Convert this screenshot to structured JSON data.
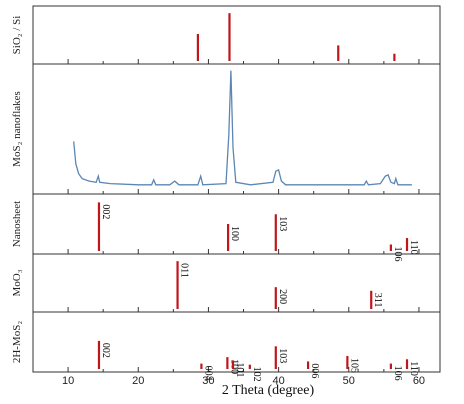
{
  "chart_data": {
    "type": "stacked_xrd_patterns",
    "xlabel": "2 Theta (degree)",
    "xlim": [
      5,
      63
    ],
    "x_ticks": [
      10,
      20,
      30,
      40,
      50,
      60
    ],
    "colors": {
      "sticks": "#c0161b",
      "curve": "#5b86b5",
      "frame": "#333333"
    },
    "panels": [
      {
        "id": "sio2",
        "label": "SiO₂ / Si",
        "kind": "sticks",
        "peaks": [
          {
            "x": 28.5,
            "h": 0.52,
            "label": ""
          },
          {
            "x": 33.0,
            "h": 0.92,
            "label": ""
          },
          {
            "x": 48.5,
            "h": 0.3,
            "label": ""
          },
          {
            "x": 56.5,
            "h": 0.14,
            "label": ""
          }
        ]
      },
      {
        "id": "mos2-nanoflakes",
        "label": "MoS₂ nanoflakes",
        "kind": "curve",
        "points": [
          [
            10.8,
            0.4
          ],
          [
            11.1,
            0.22
          ],
          [
            11.5,
            0.14
          ],
          [
            12.0,
            0.1
          ],
          [
            13.0,
            0.08
          ],
          [
            14.0,
            0.07
          ],
          [
            14.3,
            0.12
          ],
          [
            14.5,
            0.07
          ],
          [
            16.0,
            0.06
          ],
          [
            18.0,
            0.055
          ],
          [
            20.0,
            0.05
          ],
          [
            21.9,
            0.05
          ],
          [
            22.2,
            0.09
          ],
          [
            22.5,
            0.05
          ],
          [
            24.5,
            0.05
          ],
          [
            25.2,
            0.08
          ],
          [
            25.8,
            0.05
          ],
          [
            28.5,
            0.05
          ],
          [
            28.9,
            0.12
          ],
          [
            29.2,
            0.05
          ],
          [
            32.5,
            0.06
          ],
          [
            32.9,
            0.45
          ],
          [
            33.2,
            0.97
          ],
          [
            33.5,
            0.35
          ],
          [
            33.9,
            0.07
          ],
          [
            36.0,
            0.05
          ],
          [
            39.2,
            0.07
          ],
          [
            39.6,
            0.16
          ],
          [
            40.0,
            0.17
          ],
          [
            40.4,
            0.08
          ],
          [
            41.0,
            0.05
          ],
          [
            45.0,
            0.05
          ],
          [
            50.0,
            0.05
          ],
          [
            52.2,
            0.05
          ],
          [
            52.5,
            0.08
          ],
          [
            52.8,
            0.05
          ],
          [
            54.5,
            0.06
          ],
          [
            55.2,
            0.12
          ],
          [
            55.6,
            0.13
          ],
          [
            56.0,
            0.07
          ],
          [
            56.5,
            0.06
          ],
          [
            56.7,
            0.1
          ],
          [
            57.0,
            0.05
          ],
          [
            59.0,
            0.05
          ]
        ]
      },
      {
        "id": "mos2-nanosheet",
        "label": "Nanosheet",
        "kind": "sticks",
        "peaks": [
          {
            "x": 14.4,
            "h": 0.9,
            "label": "002"
          },
          {
            "x": 32.8,
            "h": 0.5,
            "label": "100"
          },
          {
            "x": 39.6,
            "h": 0.68,
            "label": "103"
          },
          {
            "x": 56.0,
            "h": 0.12,
            "label": "106"
          },
          {
            "x": 58.3,
            "h": 0.24,
            "label": "110"
          }
        ]
      },
      {
        "id": "moo3",
        "label": "MoO₃",
        "kind": "sticks",
        "peaks": [
          {
            "x": 25.6,
            "h": 0.92,
            "label": "011"
          },
          {
            "x": 39.6,
            "h": 0.42,
            "label": "200"
          },
          {
            "x": 53.2,
            "h": 0.35,
            "label": "311"
          }
        ]
      },
      {
        "id": "2h-mos2",
        "label": "2H-MoS₂",
        "kind": "sticks",
        "peaks": [
          {
            "x": 14.4,
            "h": 0.52,
            "label": "002"
          },
          {
            "x": 29.0,
            "h": 0.1,
            "label": "004"
          },
          {
            "x": 32.7,
            "h": 0.22,
            "label": "100"
          },
          {
            "x": 33.5,
            "h": 0.16,
            "label": "101"
          },
          {
            "x": 35.9,
            "h": 0.08,
            "label": "102"
          },
          {
            "x": 39.6,
            "h": 0.42,
            "label": "103"
          },
          {
            "x": 44.2,
            "h": 0.14,
            "label": "006"
          },
          {
            "x": 49.8,
            "h": 0.24,
            "label": "105"
          },
          {
            "x": 56.0,
            "h": 0.1,
            "label": "106"
          },
          {
            "x": 58.3,
            "h": 0.18,
            "label": "110"
          }
        ]
      }
    ]
  }
}
